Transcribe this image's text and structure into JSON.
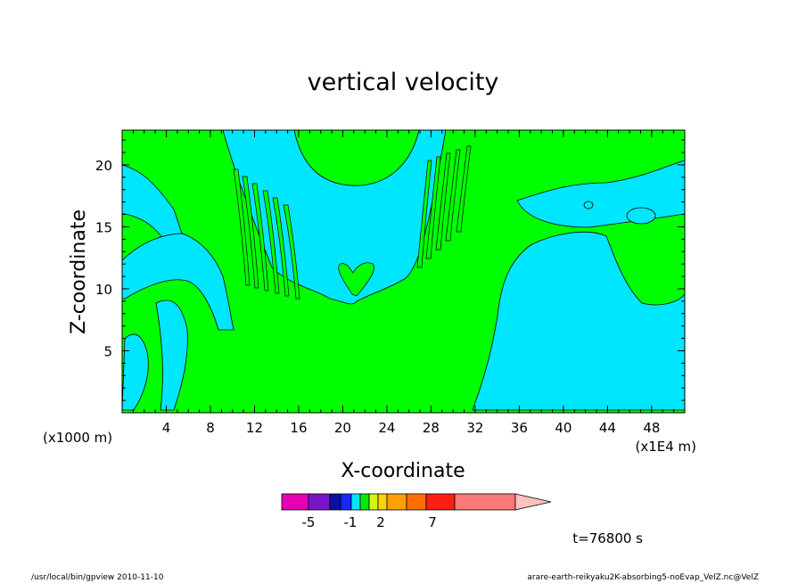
{
  "chart_data": {
    "type": "heatmap",
    "title": "vertical velocity",
    "xlabel": "X-coordinate",
    "ylabel": "Z-coordinate",
    "x_units_left": "(x1000 m)",
    "x_units_right": "(x1E4 m)",
    "xlim": [
      0,
      51
    ],
    "ylim": [
      0,
      22.8
    ],
    "x_ticks": [
      "4",
      "8",
      "12",
      "16",
      "20",
      "24",
      "28",
      "32",
      "36",
      "40",
      "44",
      "48"
    ],
    "y_ticks": [
      "5",
      "10",
      "15",
      "20"
    ],
    "colorbar": {
      "tick_labels": [
        "-5",
        "-1",
        "2",
        "7"
      ],
      "colors": [
        "#e600b4",
        "#7a14c8",
        "#0a10a0",
        "#1428ff",
        "#00e6ff",
        "#0be60b",
        "#d2f514",
        "#ffd200",
        "#ffa000",
        "#ff6e00",
        "#ff1e14",
        "#ff7878",
        "#ffc0c0"
      ]
    },
    "field_colors": {
      "upward": "#00ff00",
      "downward": "#00e6ff"
    },
    "time_label": "t=76800 s",
    "footer_left": "/usr/local/bin/gpview   2010-11-10",
    "footer_right": "arare-earth-reikyaku2K-absorbing5-noEvap_VelZ.nc@VelZ"
  }
}
